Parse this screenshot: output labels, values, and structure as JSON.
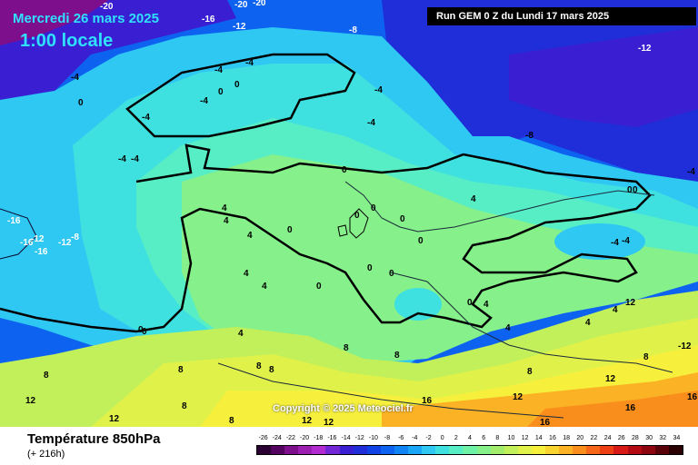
{
  "header": {
    "date": "Mercredi 26 mars 2025",
    "time": "1:00 locale",
    "run": "Run GEM 0 Z du Lundi 17 mars 2025"
  },
  "copyright": "Copyright © 2025 Meteociel.fr",
  "footer": {
    "title": "Température 850hPa",
    "subtitle": "(+ 216h)"
  },
  "legend": {
    "labels": [
      "-26",
      "-24",
      "-22",
      "-20",
      "-18",
      "-16",
      "-14",
      "-12",
      "-10",
      "-8",
      "-6",
      "-4",
      "-2",
      "0",
      "2",
      "4",
      "6",
      "8",
      "10",
      "12",
      "14",
      "16",
      "18",
      "20",
      "22",
      "24",
      "26",
      "28",
      "30",
      "32",
      "34"
    ],
    "colors": [
      "#2a0033",
      "#54005f",
      "#7d0f8c",
      "#9a1fb0",
      "#b12bd0",
      "#7326d6",
      "#3a1fd2",
      "#1f2ed8",
      "#1042e6",
      "#0d62f0",
      "#1084f4",
      "#1aa6f6",
      "#2fc8f2",
      "#3fe0e0",
      "#57eec6",
      "#6df2a6",
      "#86f08a",
      "#a2ee6c",
      "#c2f05a",
      "#e0f24a",
      "#f6f03c",
      "#fad42e",
      "#fbb224",
      "#fa8e1c",
      "#f66618",
      "#ee3e14",
      "#d81a16",
      "#b40a14",
      "#8e0610",
      "#5a020a",
      "#2a0002"
    ]
  },
  "map": {
    "label_values": [
      "-20",
      "-20",
      "-20",
      "-16",
      "-12",
      "-8",
      "-12",
      "-4",
      "-4",
      "-4",
      "-4",
      "0",
      "0",
      "-4",
      "-4",
      "-4",
      "0",
      "-4",
      "-4",
      "-8",
      "-4",
      "0",
      "4",
      "0",
      "0",
      "4",
      "4",
      "4",
      "0",
      "0",
      "0",
      "0",
      "0",
      "0",
      "0",
      "-4",
      "0",
      "0",
      "4",
      "4",
      "4",
      "4",
      "4",
      "4",
      "8",
      "8",
      "8",
      "8",
      "8",
      "8",
      "8",
      "8",
      "8",
      "8",
      "12",
      "12",
      "12",
      "12",
      "12",
      "12",
      "12",
      "16",
      "16",
      "16",
      "16",
      "-16",
      "-16",
      "-12",
      "-12",
      "-8",
      "-16",
      "0",
      "4",
      "-12",
      "-4",
      "0"
    ]
  }
}
